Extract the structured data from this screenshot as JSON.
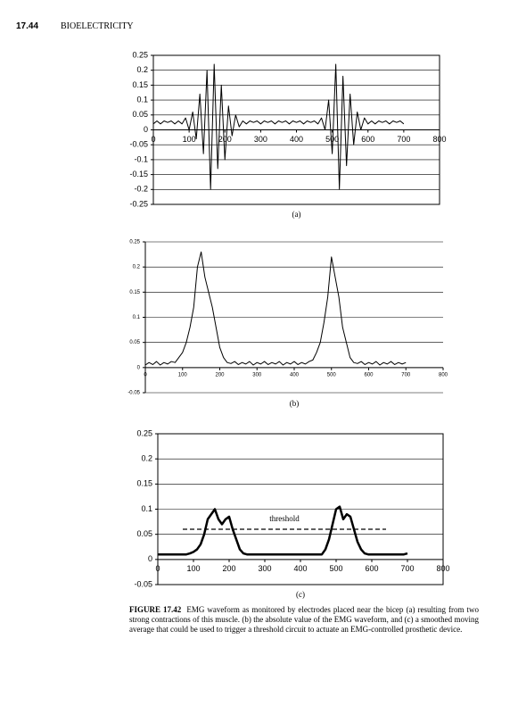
{
  "header": {
    "page": "17.44",
    "section": "BIOELECTRICITY"
  },
  "chart_data": [
    {
      "type": "line",
      "label": "(a)",
      "box": true,
      "grid": true,
      "x": [
        0,
        10,
        20,
        30,
        40,
        50,
        60,
        70,
        80,
        90,
        100,
        110,
        120,
        130,
        140,
        150,
        160,
        170,
        180,
        190,
        200,
        210,
        220,
        230,
        240,
        250,
        260,
        270,
        280,
        290,
        300,
        310,
        320,
        330,
        340,
        350,
        360,
        370,
        380,
        390,
        400,
        410,
        420,
        430,
        440,
        450,
        460,
        470,
        480,
        490,
        500,
        510,
        520,
        530,
        540,
        550,
        560,
        570,
        580,
        590,
        600,
        610,
        620,
        630,
        640,
        650,
        660,
        670,
        680,
        690,
        700
      ],
      "series": [
        {
          "color": "#000000",
          "values": [
            0.02,
            0.03,
            0.02,
            0.03,
            0.025,
            0.03,
            0.02,
            0.03,
            0.02,
            0.04,
            0.0,
            0.06,
            -0.03,
            0.12,
            -0.08,
            0.2,
            -0.2,
            0.22,
            -0.13,
            0.15,
            -0.1,
            0.08,
            -0.02,
            0.05,
            0.01,
            0.03,
            0.02,
            0.03,
            0.025,
            0.03,
            0.02,
            0.03,
            0.025,
            0.03,
            0.02,
            0.03,
            0.025,
            0.03,
            0.02,
            0.03,
            0.025,
            0.03,
            0.02,
            0.03,
            0.025,
            0.03,
            0.02,
            0.04,
            0.0,
            0.1,
            -0.08,
            0.22,
            -0.2,
            0.18,
            -0.12,
            0.12,
            -0.05,
            0.06,
            0.0,
            0.04,
            0.02,
            0.03,
            0.02,
            0.03,
            0.025,
            0.03,
            0.02,
            0.03,
            0.025,
            0.03,
            0.02
          ]
        }
      ],
      "xlim": [
        0,
        800
      ],
      "xticks": [
        0,
        100,
        200,
        300,
        400,
        500,
        600,
        700,
        800
      ],
      "ylim": [
        -0.25,
        0.25
      ],
      "yticks": [
        -0.25,
        -0.2,
        -0.15,
        -0.1,
        -0.05,
        0,
        0.05,
        0.1,
        0.15,
        0.2,
        0.25
      ]
    },
    {
      "type": "line",
      "label": "(b)",
      "box": false,
      "grid": true,
      "x": [
        0,
        10,
        20,
        30,
        40,
        50,
        60,
        70,
        80,
        90,
        100,
        110,
        120,
        130,
        140,
        150,
        160,
        170,
        180,
        190,
        200,
        210,
        220,
        230,
        240,
        250,
        260,
        270,
        280,
        290,
        300,
        310,
        320,
        330,
        340,
        350,
        360,
        370,
        380,
        390,
        400,
        410,
        420,
        430,
        440,
        450,
        460,
        470,
        480,
        490,
        500,
        510,
        520,
        530,
        540,
        550,
        560,
        570,
        580,
        590,
        600,
        610,
        620,
        630,
        640,
        650,
        660,
        670,
        680,
        690,
        700
      ],
      "series": [
        {
          "color": "#000000",
          "values": [
            0.005,
            0.01,
            0.006,
            0.012,
            0.005,
            0.01,
            0.007,
            0.012,
            0.01,
            0.02,
            0.03,
            0.05,
            0.08,
            0.12,
            0.2,
            0.23,
            0.18,
            0.15,
            0.12,
            0.08,
            0.04,
            0.02,
            0.01,
            0.008,
            0.012,
            0.006,
            0.01,
            0.007,
            0.012,
            0.005,
            0.01,
            0.007,
            0.012,
            0.006,
            0.01,
            0.007,
            0.012,
            0.005,
            0.01,
            0.007,
            0.012,
            0.006,
            0.01,
            0.007,
            0.012,
            0.015,
            0.03,
            0.05,
            0.09,
            0.14,
            0.22,
            0.18,
            0.14,
            0.08,
            0.05,
            0.02,
            0.01,
            0.008,
            0.012,
            0.006,
            0.01,
            0.007,
            0.012,
            0.005,
            0.01,
            0.007,
            0.012,
            0.006,
            0.01,
            0.007,
            0.01
          ]
        }
      ],
      "xlim": [
        0,
        800
      ],
      "xticks": [
        0,
        100,
        200,
        300,
        400,
        500,
        600,
        700,
        800
      ],
      "ylim": [
        -0.05,
        0.25
      ],
      "yticks": [
        -0.05,
        0,
        0.05,
        0.1,
        0.15,
        0.2,
        0.25
      ]
    },
    {
      "type": "line",
      "label": "(c)",
      "box": true,
      "grid": true,
      "x": [
        0,
        10,
        20,
        30,
        40,
        50,
        60,
        70,
        80,
        90,
        100,
        110,
        120,
        130,
        140,
        150,
        160,
        170,
        180,
        190,
        200,
        210,
        220,
        230,
        240,
        250,
        260,
        270,
        280,
        290,
        300,
        310,
        320,
        330,
        340,
        350,
        360,
        370,
        380,
        390,
        400,
        410,
        420,
        430,
        440,
        450,
        460,
        470,
        480,
        490,
        500,
        510,
        520,
        530,
        540,
        550,
        560,
        570,
        580,
        590,
        600,
        610,
        620,
        630,
        640,
        650,
        660,
        670,
        680,
        690,
        700
      ],
      "series": [
        {
          "color": "#000000",
          "values": [
            0.01,
            0.01,
            0.01,
            0.01,
            0.01,
            0.01,
            0.01,
            0.01,
            0.01,
            0.012,
            0.015,
            0.02,
            0.03,
            0.05,
            0.08,
            0.09,
            0.1,
            0.08,
            0.07,
            0.08,
            0.085,
            0.06,
            0.04,
            0.02,
            0.012,
            0.01,
            0.01,
            0.01,
            0.01,
            0.01,
            0.01,
            0.01,
            0.01,
            0.01,
            0.01,
            0.01,
            0.01,
            0.01,
            0.01,
            0.01,
            0.01,
            0.01,
            0.01,
            0.01,
            0.01,
            0.01,
            0.01,
            0.02,
            0.04,
            0.07,
            0.1,
            0.105,
            0.08,
            0.09,
            0.085,
            0.06,
            0.035,
            0.02,
            0.012,
            0.01,
            0.01,
            0.01,
            0.01,
            0.01,
            0.01,
            0.01,
            0.01,
            0.01,
            0.01,
            0.01,
            0.012
          ]
        }
      ],
      "threshold": {
        "label": "threshold",
        "value": 0.06,
        "x": [
          70,
          640
        ]
      },
      "xlim": [
        0,
        800
      ],
      "xticks": [
        0,
        100,
        200,
        300,
        400,
        500,
        600,
        700,
        800
      ],
      "ylim": [
        -0.05,
        0.25
      ],
      "yticks": [
        -0.05,
        0,
        0.05,
        0.1,
        0.15,
        0.2,
        0.25
      ]
    }
  ],
  "caption": {
    "label": "FIGURE 17.42",
    "text": "EMG waveform as monitored by electrodes placed near the bicep (a) resulting from two strong contractions of this muscle. (b) the absolute value of the EMG waveform, and (c) a smoothed moving average that could be used to trigger a threshold circuit to actuate an EMG-controlled prosthetic device."
  }
}
